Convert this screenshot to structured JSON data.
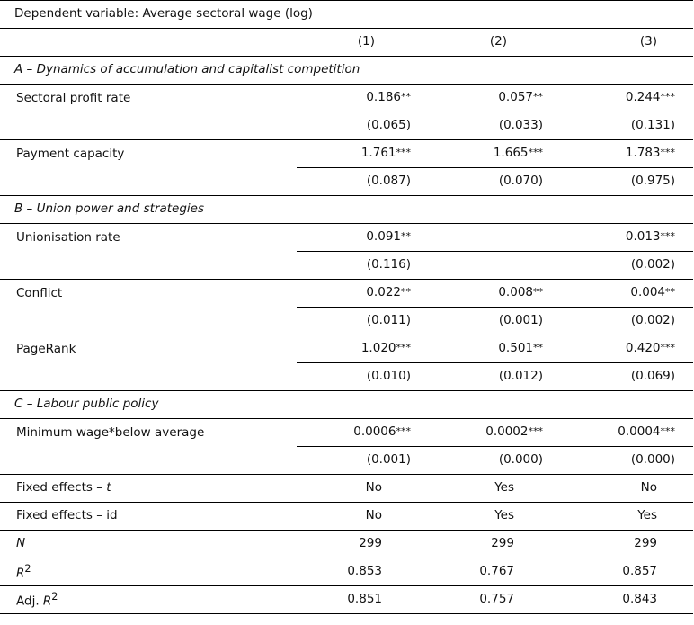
{
  "title": "Dependent variable: Average sectoral wage (log)",
  "columns": [
    "(1)",
    "(2)",
    "(3)"
  ],
  "sections": [
    {
      "heading": "A – Dynamics of accumulation and capitalist competition",
      "vars": [
        {
          "name": "Sectoral profit rate",
          "coefs": [
            {
              "v": "0.186",
              "s": "**"
            },
            {
              "v": "0.057",
              "s": "**"
            },
            {
              "v": "0.244",
              "s": "***"
            }
          ],
          "se": [
            "(0.065)",
            "(0.033)",
            "(0.131)"
          ]
        },
        {
          "name": "Payment capacity",
          "coefs": [
            {
              "v": "1.761",
              "s": "***"
            },
            {
              "v": "1.665",
              "s": "***"
            },
            {
              "v": "1.783",
              "s": "***"
            }
          ],
          "se": [
            "(0.087)",
            "(0.070)",
            "(0.975)"
          ]
        }
      ]
    },
    {
      "heading": "B – Union power and strategies",
      "vars": [
        {
          "name": "Unionisation rate",
          "coefs": [
            {
              "v": "0.091",
              "s": "**"
            },
            {
              "v": "–",
              "s": ""
            },
            {
              "v": "0.013",
              "s": "***"
            }
          ],
          "se": [
            "(0.116)",
            "",
            "(0.002)"
          ]
        },
        {
          "name": "Conflict",
          "coefs": [
            {
              "v": "0.022",
              "s": "**"
            },
            {
              "v": "0.008",
              "s": "**"
            },
            {
              "v": "0.004",
              "s": "**"
            }
          ],
          "se": [
            "(0.011)",
            "(0.001)",
            "(0.002)"
          ]
        },
        {
          "name": "PageRank",
          "coefs": [
            {
              "v": "1.020",
              "s": "***"
            },
            {
              "v": "0.501",
              "s": "**"
            },
            {
              "v": "0.420",
              "s": "***"
            }
          ],
          "se": [
            "(0.010)",
            "(0.012)",
            "(0.069)"
          ]
        }
      ]
    },
    {
      "heading": "C – Labour public policy",
      "vars": [
        {
          "name": "Minimum wage*below average",
          "coefs": [
            {
              "v": "0.0006",
              "s": "***"
            },
            {
              "v": "0.0002",
              "s": "***"
            },
            {
              "v": "0.0004",
              "s": "***"
            }
          ],
          "se": [
            "(0.001)",
            "(0.000)",
            "(0.000)"
          ]
        }
      ]
    }
  ],
  "footer": [
    {
      "label": "Fixed effects – ",
      "label_it": "t",
      "values": [
        "No",
        "Yes",
        "No"
      ]
    },
    {
      "label": "Fixed effects – id",
      "label_it": "",
      "values": [
        "No",
        "Yes",
        "Yes"
      ]
    },
    {
      "label": "",
      "label_it": "N",
      "values": [
        "299",
        "299",
        "299"
      ]
    },
    {
      "label": "",
      "label_it": "R",
      "sup": "2",
      "values": [
        "0.853",
        "0.767",
        "0.857"
      ]
    },
    {
      "label": "Adj. ",
      "label_it": "R",
      "sup": "2",
      "values": [
        "0.851",
        "0.757",
        "0.843"
      ]
    }
  ]
}
